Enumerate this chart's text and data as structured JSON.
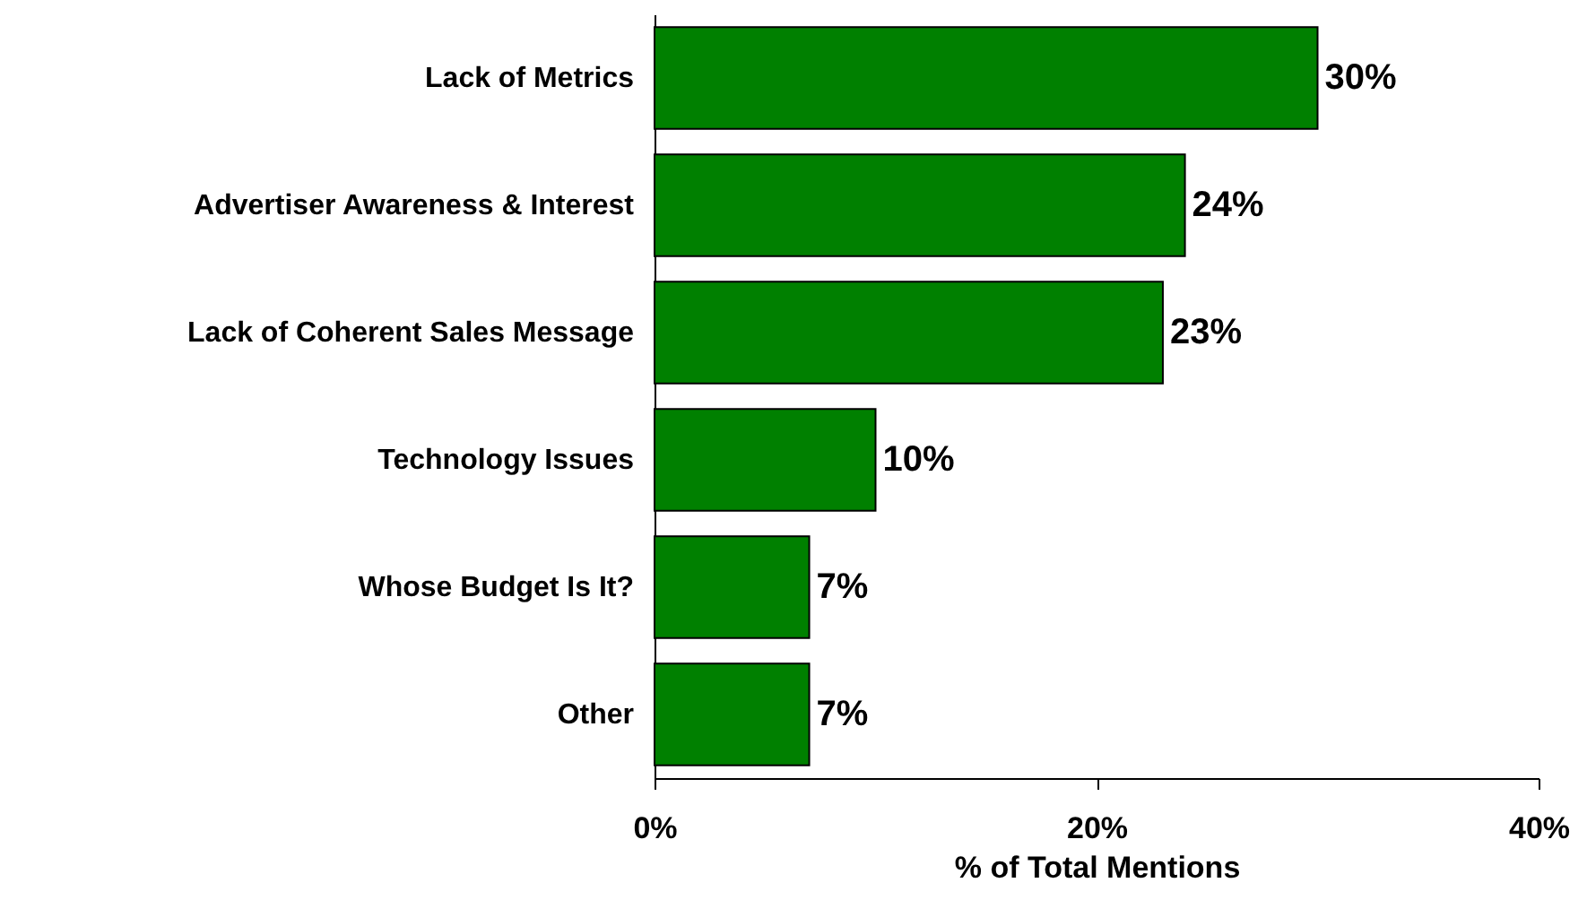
{
  "chart_data": {
    "type": "bar",
    "orientation": "horizontal",
    "xlabel": "% of Total Mentions",
    "categories": [
      "Lack of Metrics",
      "Advertiser Awareness & Interest",
      "Lack of Coherent Sales Message",
      "Technology Issues",
      "Whose Budget Is It?",
      "Other"
    ],
    "values": [
      30,
      24,
      23,
      10,
      7,
      7
    ],
    "value_labels": [
      "30%",
      "24%",
      "23%",
      "10%",
      "7%",
      "7%"
    ],
    "color": "#008000",
    "xlim": [
      0,
      40
    ],
    "xticks": [
      {
        "value": 0,
        "label": "0%"
      },
      {
        "value": 20,
        "label": "20%"
      },
      {
        "value": 40,
        "label": "40%"
      }
    ]
  }
}
